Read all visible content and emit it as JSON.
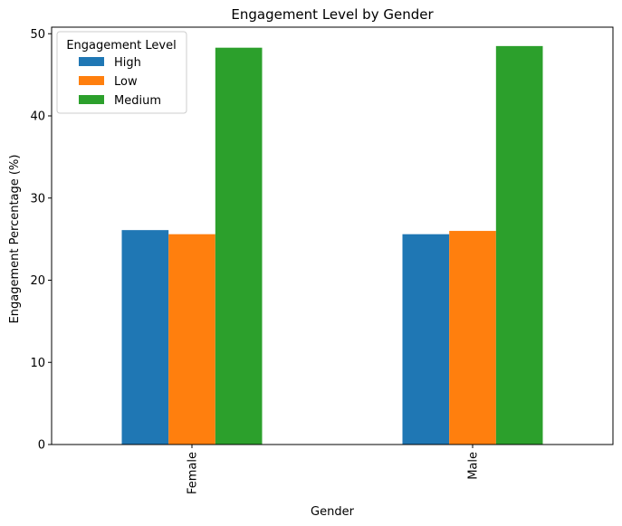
{
  "chart_data": {
    "type": "bar",
    "title": "Engagement Level by Gender",
    "xlabel": "Gender",
    "ylabel": "Engagement Percentage (%)",
    "categories": [
      "Female",
      "Male"
    ],
    "series": [
      {
        "name": "High",
        "values": [
          26.1,
          25.6
        ],
        "color": "#1f77b4"
      },
      {
        "name": "Low",
        "values": [
          25.6,
          26.0
        ],
        "color": "#ff7f0e"
      },
      {
        "name": "Medium",
        "values": [
          48.3,
          48.5
        ],
        "color": "#2ca02c"
      }
    ],
    "ylim": [
      0,
      50.8
    ],
    "yticks": [
      0,
      10,
      20,
      30,
      40,
      50
    ],
    "legend": {
      "title": "Engagement Level",
      "placement": "top-left"
    },
    "grid": false
  }
}
